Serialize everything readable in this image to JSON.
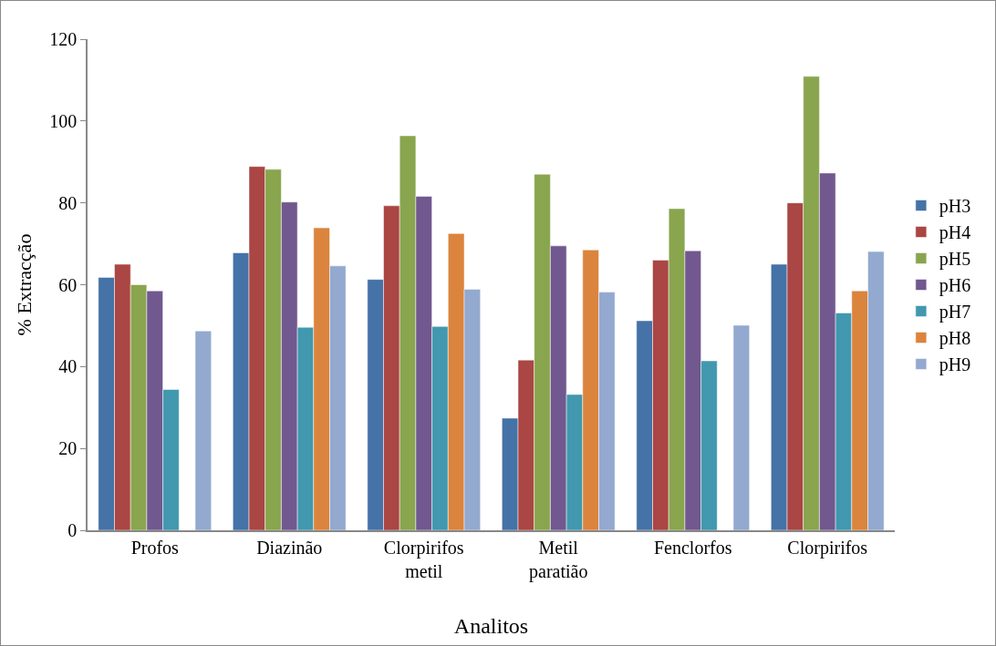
{
  "chart_data": {
    "type": "bar",
    "xlabel": "Analitos",
    "ylabel": "% Extracção",
    "categories": [
      "Profos",
      "Diazinão",
      "Clorpirifos metil",
      "Metil paratião",
      "Fenclorfos",
      "Clorpirifos"
    ],
    "series": [
      {
        "name": "pH3",
        "color": "#4572a7",
        "values": [
          61.8,
          67.8,
          61.3,
          27.4,
          51.2,
          65
        ]
      },
      {
        "name": "pH4",
        "color": "#aa4643",
        "values": [
          65,
          88.9,
          79.3,
          41.6,
          66,
          80
        ]
      },
      {
        "name": "pH5",
        "color": "#89a54e",
        "values": [
          60,
          88.2,
          96.4,
          87,
          78.6,
          110.9
        ]
      },
      {
        "name": "pH6",
        "color": "#71588f",
        "values": [
          58.5,
          80.2,
          81.6,
          69.5,
          68.3,
          87.3
        ]
      },
      {
        "name": "pH7",
        "color": "#4198af",
        "values": [
          34.4,
          49.6,
          49.8,
          33.2,
          41.4,
          53.1
        ]
      },
      {
        "name": "pH8",
        "color": "#db843d",
        "values": [
          null,
          73.9,
          72.5,
          68.5,
          null,
          58.5
        ]
      },
      {
        "name": "pH9",
        "color": "#93a9cf",
        "values": [
          48.7,
          64.6,
          58.9,
          58.2,
          50.1,
          68.1
        ]
      }
    ],
    "ylim": [
      0,
      120
    ],
    "yticks": [
      0,
      20,
      40,
      60,
      80,
      100,
      120
    ],
    "grid": false,
    "legend": "right"
  }
}
